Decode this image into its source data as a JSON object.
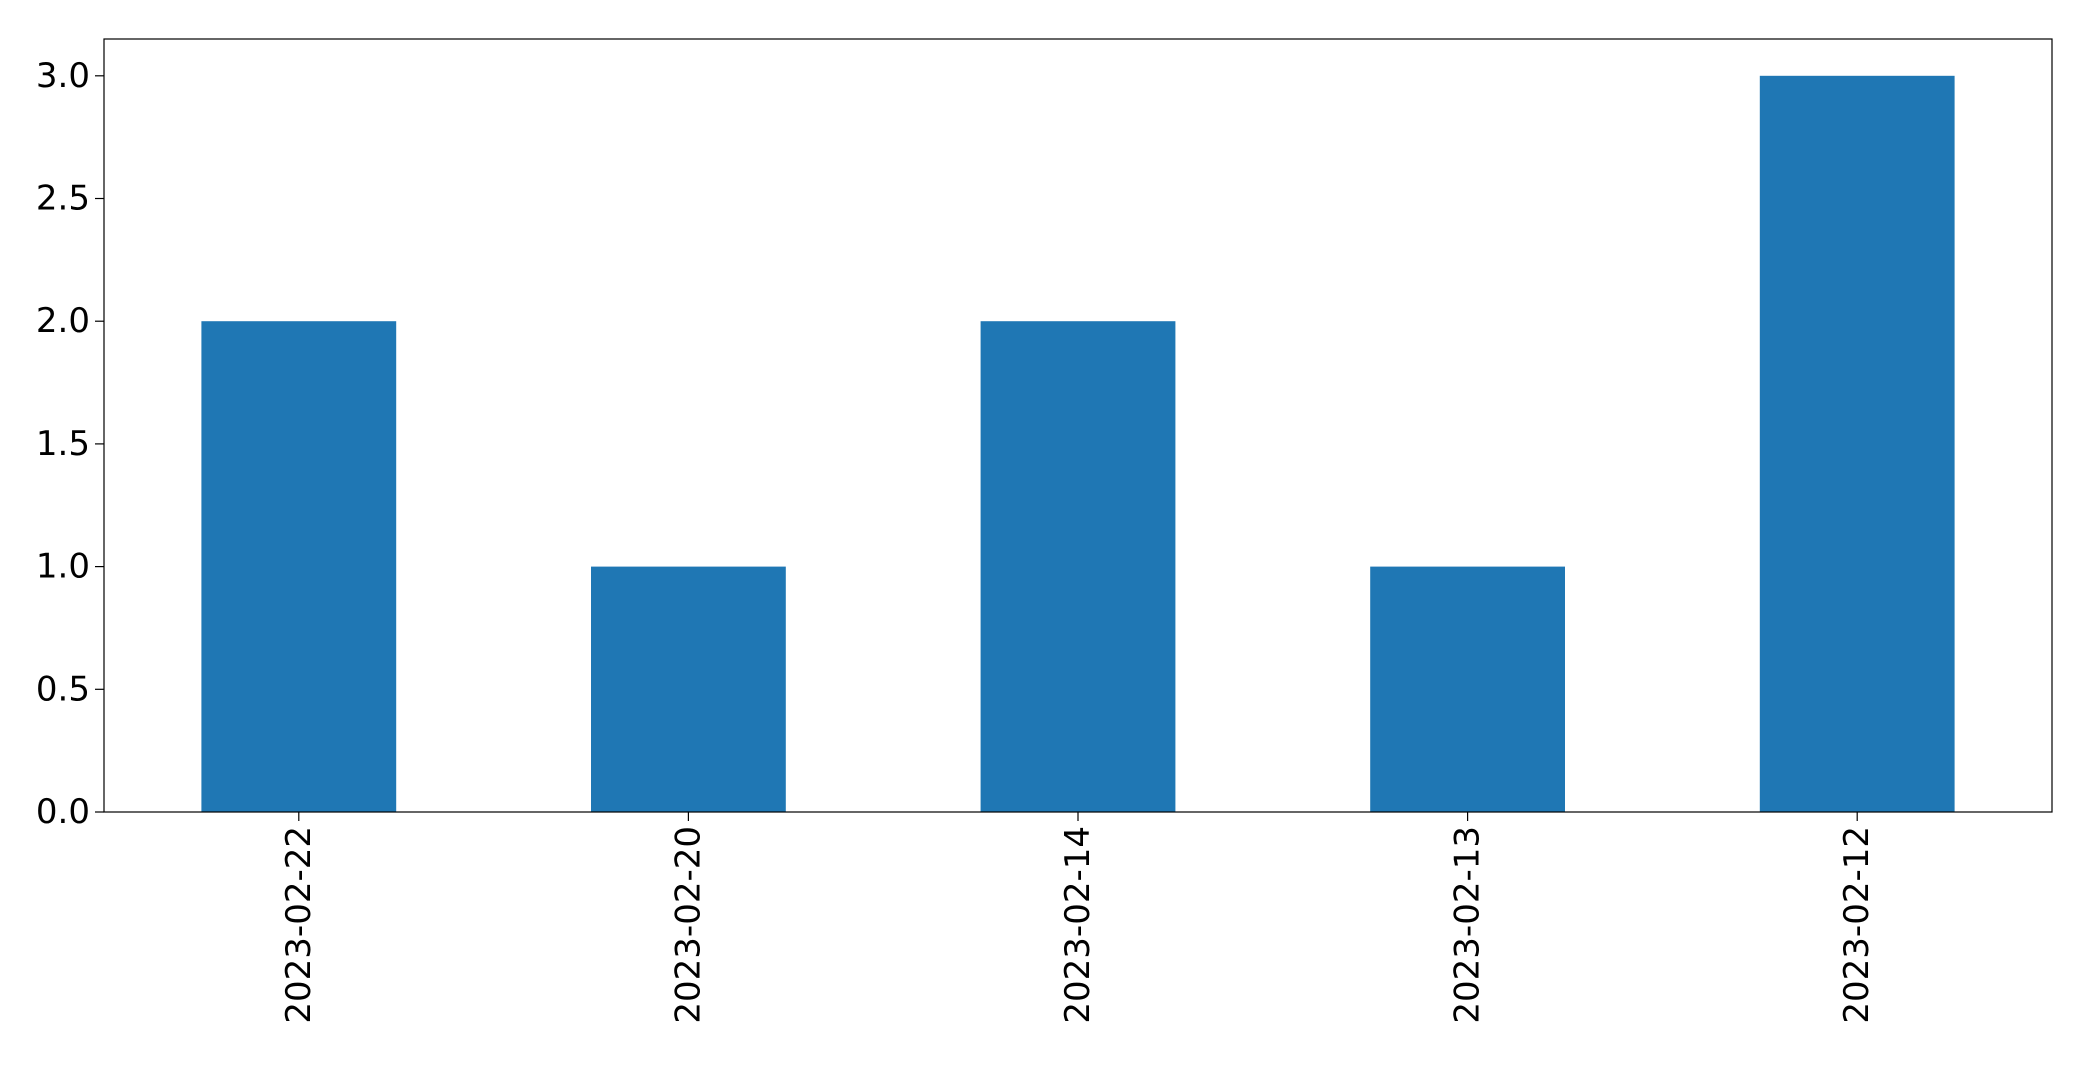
{
  "chart_data": {
    "type": "bar",
    "categories": [
      "2023-02-22",
      "2023-02-20",
      "2023-02-14",
      "2023-02-13",
      "2023-02-12"
    ],
    "values": [
      2,
      1,
      2,
      1,
      3
    ],
    "title": "",
    "xlabel": "",
    "ylabel": "",
    "ylim": [
      0,
      3.15
    ],
    "yticks": [
      "0.0",
      "0.5",
      "1.0",
      "1.5",
      "2.0",
      "2.5",
      "3.0"
    ],
    "grid": false,
    "bar_color": "#1f77b4"
  }
}
